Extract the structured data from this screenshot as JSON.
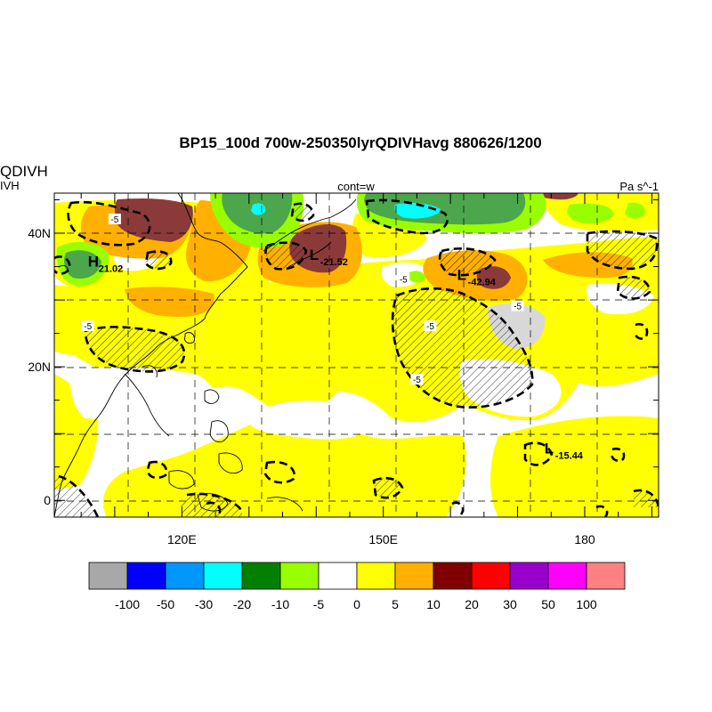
{
  "header": {
    "title": "BP15_100d 700w-250350lyrQDIVHavg  880626/1200",
    "left_var": "QDIVH",
    "left_var_sub": "IVH",
    "center_label": "cont=w",
    "units": "Pa s^-1"
  },
  "map": {
    "lon_range": [
      101,
      191
    ],
    "lat_range": [
      -2.5,
      46
    ],
    "lat_ticks": [
      {
        "value": 0,
        "label": "0"
      },
      {
        "value": 20,
        "label": "20N"
      },
      {
        "value": 40,
        "label": "40N"
      }
    ],
    "lon_ticks": [
      {
        "value": 120,
        "label": "120E"
      },
      {
        "value": 150,
        "label": "150E"
      },
      {
        "value": 180,
        "label": "180"
      }
    ],
    "grid": "dashed every 10 degrees"
  },
  "extrema": [
    {
      "type": "H",
      "value": "21.02",
      "lon": 106,
      "lat": 35
    },
    {
      "type": "L",
      "value": "-21.52",
      "lon": 139,
      "lat": 36
    },
    {
      "type": "L",
      "value": "-42.94",
      "lon": 161,
      "lat": 33
    },
    {
      "type": "L",
      "value": "-15.44",
      "lon": 174,
      "lat": 7
    }
  ],
  "contour_labels": [
    {
      "text": "-5",
      "lon": 110,
      "lat": 42
    },
    {
      "text": "-5",
      "lon": 106,
      "lat": 26
    },
    {
      "text": "-5",
      "lon": 153,
      "lat": 33
    },
    {
      "text": "-5",
      "lon": 157,
      "lat": 26
    },
    {
      "text": "-5",
      "lon": 155,
      "lat": 18
    },
    {
      "text": "-5",
      "lon": 170,
      "lat": 29
    }
  ],
  "colorbar": {
    "colors": [
      "#a8a8a8",
      "#0000ff",
      "#0096ff",
      "#00ffff",
      "#008000",
      "#99ff00",
      "#ffffff",
      "#ffff00",
      "#ffb000",
      "#800000",
      "#ff0000",
      "#9900cc",
      "#ff00ff",
      "#ff8080"
    ],
    "labels": [
      "-100",
      "-50",
      "-30",
      "-20",
      "-10",
      "-5",
      "0",
      "5",
      "10",
      "20",
      "30",
      "50",
      "100"
    ]
  },
  "shading_colors": {
    "yellow": "#ffff00",
    "orange": "#ffb000",
    "maroon": "#8b3a3a",
    "green": "#4ca64c",
    "lightgreen": "#99ff00",
    "cyan": "#00ffff"
  }
}
